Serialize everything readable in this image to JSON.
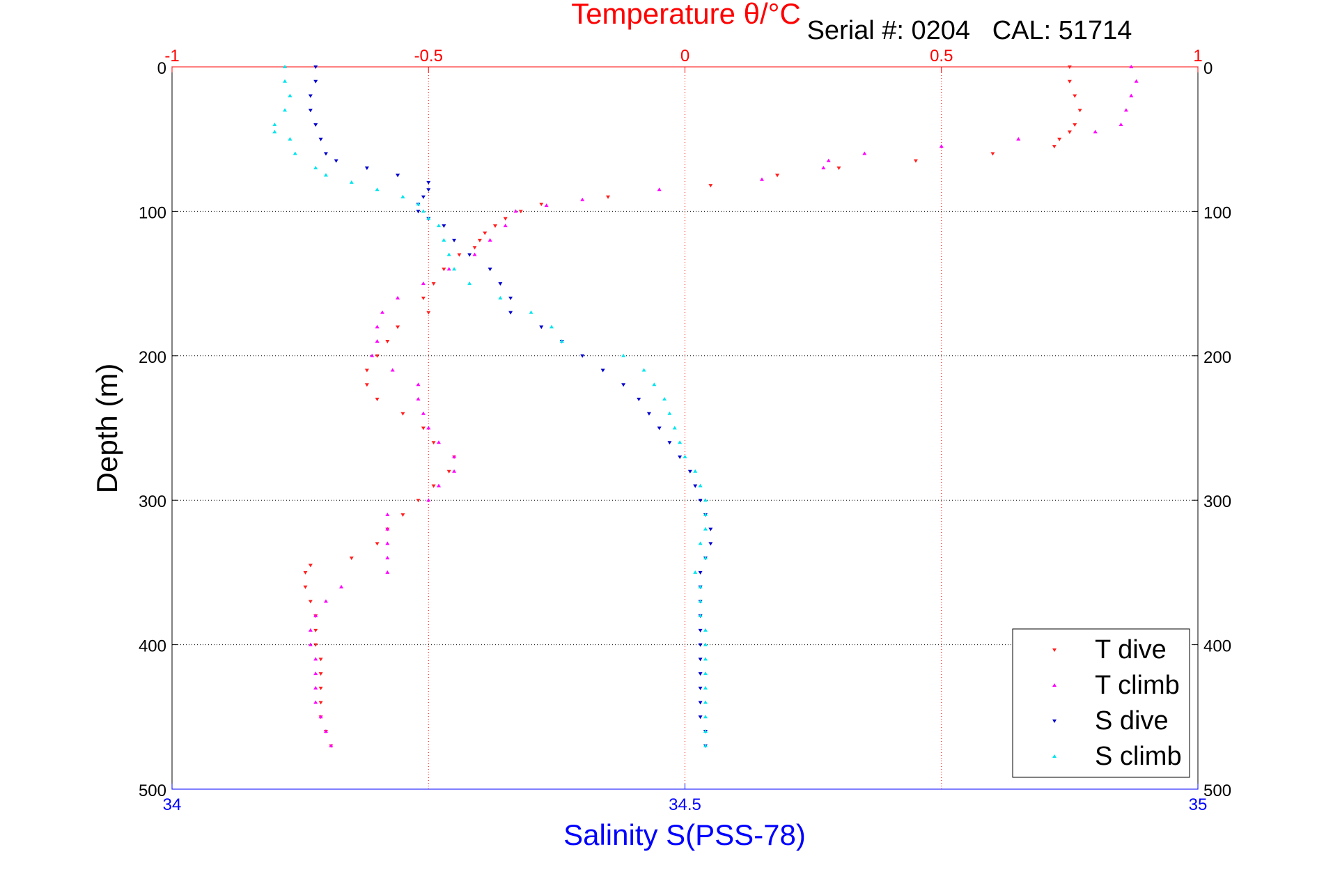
{
  "chart_data": {
    "type": "scatter",
    "title": "Temperature θ/°C",
    "subtitle": "Serial #: 0204   CAL: 51714",
    "xlabel": "Salinity S(PSS-78)",
    "ylabel": "Depth (m)",
    "x_bottom": {
      "range": [
        34,
        35
      ],
      "ticks": [
        "34",
        "34.5",
        "35"
      ],
      "color": "#0000ff"
    },
    "x_top": {
      "range": [
        -1,
        1
      ],
      "ticks": [
        "-1",
        "-0.5",
        "0",
        "0.5",
        "1"
      ],
      "color": "#ff0000"
    },
    "y": {
      "range": [
        0,
        500
      ],
      "reversed": true,
      "ticks": [
        "0",
        "100",
        "200",
        "300",
        "400",
        "500"
      ]
    },
    "grid": true,
    "legend_position": "bottom-right",
    "colors": {
      "title": "#ff0000",
      "xlabel": "#0000ff",
      "t_dive": "#ff2020",
      "t_climb": "#ff00ff",
      "s_dive": "#0000cc",
      "s_climb": "#00e5ee"
    },
    "series": [
      {
        "name": "T dive",
        "axis": "temperature",
        "color": "#ff2020",
        "points": [
          [
            0.75,
            0
          ],
          [
            0.75,
            10
          ],
          [
            0.76,
            20
          ],
          [
            0.77,
            30
          ],
          [
            0.76,
            40
          ],
          [
            0.75,
            45
          ],
          [
            0.73,
            50
          ],
          [
            0.72,
            55
          ],
          [
            0.6,
            60
          ],
          [
            0.45,
            65
          ],
          [
            0.3,
            70
          ],
          [
            0.18,
            75
          ],
          [
            0.05,
            82
          ],
          [
            -0.15,
            90
          ],
          [
            -0.28,
            95
          ],
          [
            -0.32,
            100
          ],
          [
            -0.35,
            105
          ],
          [
            -0.37,
            110
          ],
          [
            -0.39,
            115
          ],
          [
            -0.4,
            120
          ],
          [
            -0.41,
            125
          ],
          [
            -0.44,
            130
          ],
          [
            -0.47,
            140
          ],
          [
            -0.49,
            150
          ],
          [
            -0.51,
            160
          ],
          [
            -0.5,
            170
          ],
          [
            -0.56,
            180
          ],
          [
            -0.58,
            190
          ],
          [
            -0.6,
            200
          ],
          [
            -0.62,
            210
          ],
          [
            -0.62,
            220
          ],
          [
            -0.6,
            230
          ],
          [
            -0.55,
            240
          ],
          [
            -0.51,
            250
          ],
          [
            -0.49,
            260
          ],
          [
            -0.45,
            270
          ],
          [
            -0.46,
            280
          ],
          [
            -0.49,
            290
          ],
          [
            -0.52,
            300
          ],
          [
            -0.55,
            310
          ],
          [
            -0.58,
            320
          ],
          [
            -0.6,
            330
          ],
          [
            -0.65,
            340
          ],
          [
            -0.73,
            345
          ],
          [
            -0.74,
            350
          ],
          [
            -0.74,
            360
          ],
          [
            -0.73,
            370
          ],
          [
            -0.72,
            380
          ],
          [
            -0.72,
            390
          ],
          [
            -0.72,
            400
          ],
          [
            -0.71,
            410
          ],
          [
            -0.71,
            420
          ],
          [
            -0.71,
            430
          ],
          [
            -0.71,
            440
          ],
          [
            -0.71,
            450
          ],
          [
            -0.7,
            460
          ],
          [
            -0.69,
            470
          ]
        ]
      },
      {
        "name": "T climb",
        "axis": "temperature",
        "color": "#ff00ff",
        "points": [
          [
            0.87,
            0
          ],
          [
            0.88,
            10
          ],
          [
            0.87,
            20
          ],
          [
            0.86,
            30
          ],
          [
            0.85,
            40
          ],
          [
            0.8,
            45
          ],
          [
            0.65,
            50
          ],
          [
            0.5,
            55
          ],
          [
            0.35,
            60
          ],
          [
            0.28,
            65
          ],
          [
            0.27,
            70
          ],
          [
            0.15,
            78
          ],
          [
            -0.05,
            85
          ],
          [
            -0.2,
            92
          ],
          [
            -0.27,
            96
          ],
          [
            -0.33,
            100
          ],
          [
            -0.35,
            110
          ],
          [
            -0.38,
            120
          ],
          [
            -0.41,
            130
          ],
          [
            -0.46,
            140
          ],
          [
            -0.51,
            150
          ],
          [
            -0.56,
            160
          ],
          [
            -0.59,
            170
          ],
          [
            -0.6,
            180
          ],
          [
            -0.6,
            190
          ],
          [
            -0.61,
            200
          ],
          [
            -0.57,
            210
          ],
          [
            -0.52,
            220
          ],
          [
            -0.52,
            230
          ],
          [
            -0.51,
            240
          ],
          [
            -0.5,
            250
          ],
          [
            -0.48,
            260
          ],
          [
            -0.45,
            270
          ],
          [
            -0.45,
            280
          ],
          [
            -0.48,
            290
          ],
          [
            -0.5,
            300
          ],
          [
            -0.58,
            310
          ],
          [
            -0.58,
            320
          ],
          [
            -0.58,
            330
          ],
          [
            -0.58,
            340
          ],
          [
            -0.58,
            350
          ],
          [
            -0.67,
            360
          ],
          [
            -0.7,
            370
          ],
          [
            -0.72,
            380
          ],
          [
            -0.73,
            390
          ],
          [
            -0.73,
            400
          ],
          [
            -0.72,
            410
          ],
          [
            -0.72,
            420
          ],
          [
            -0.72,
            430
          ],
          [
            -0.72,
            440
          ],
          [
            -0.71,
            450
          ],
          [
            -0.7,
            460
          ],
          [
            -0.69,
            470
          ]
        ]
      },
      {
        "name": "S dive",
        "axis": "salinity",
        "color": "#0000cc",
        "points": [
          [
            34.14,
            0
          ],
          [
            34.14,
            10
          ],
          [
            34.135,
            20
          ],
          [
            34.135,
            30
          ],
          [
            34.14,
            40
          ],
          [
            34.145,
            50
          ],
          [
            34.15,
            60
          ],
          [
            34.16,
            65
          ],
          [
            34.19,
            70
          ],
          [
            34.22,
            75
          ],
          [
            34.25,
            80
          ],
          [
            34.25,
            85
          ],
          [
            34.245,
            90
          ],
          [
            34.24,
            95
          ],
          [
            34.24,
            100
          ],
          [
            34.25,
            105
          ],
          [
            34.265,
            110
          ],
          [
            34.275,
            120
          ],
          [
            34.29,
            130
          ],
          [
            34.31,
            140
          ],
          [
            34.32,
            150
          ],
          [
            34.33,
            160
          ],
          [
            34.33,
            170
          ],
          [
            34.36,
            180
          ],
          [
            34.38,
            190
          ],
          [
            34.4,
            200
          ],
          [
            34.42,
            210
          ],
          [
            34.44,
            220
          ],
          [
            34.455,
            230
          ],
          [
            34.465,
            240
          ],
          [
            34.475,
            250
          ],
          [
            34.485,
            260
          ],
          [
            34.495,
            270
          ],
          [
            34.505,
            280
          ],
          [
            34.51,
            290
          ],
          [
            34.515,
            300
          ],
          [
            34.52,
            310
          ],
          [
            34.525,
            320
          ],
          [
            34.525,
            330
          ],
          [
            34.52,
            340
          ],
          [
            34.515,
            350
          ],
          [
            34.515,
            360
          ],
          [
            34.515,
            370
          ],
          [
            34.515,
            380
          ],
          [
            34.515,
            390
          ],
          [
            34.515,
            400
          ],
          [
            34.515,
            410
          ],
          [
            34.515,
            420
          ],
          [
            34.515,
            430
          ],
          [
            34.515,
            440
          ],
          [
            34.515,
            450
          ],
          [
            34.52,
            460
          ],
          [
            34.52,
            470
          ]
        ]
      },
      {
        "name": "S climb",
        "axis": "salinity",
        "color": "#00e5ee",
        "points": [
          [
            34.11,
            0
          ],
          [
            34.11,
            10
          ],
          [
            34.115,
            20
          ],
          [
            34.11,
            30
          ],
          [
            34.1,
            40
          ],
          [
            34.1,
            45
          ],
          [
            34.115,
            50
          ],
          [
            34.12,
            60
          ],
          [
            34.14,
            70
          ],
          [
            34.15,
            75
          ],
          [
            34.175,
            80
          ],
          [
            34.2,
            85
          ],
          [
            34.225,
            90
          ],
          [
            34.24,
            95
          ],
          [
            34.245,
            100
          ],
          [
            34.25,
            105
          ],
          [
            34.26,
            110
          ],
          [
            34.265,
            120
          ],
          [
            34.27,
            130
          ],
          [
            34.275,
            140
          ],
          [
            34.29,
            150
          ],
          [
            34.32,
            160
          ],
          [
            34.35,
            170
          ],
          [
            34.37,
            180
          ],
          [
            34.38,
            190
          ],
          [
            34.44,
            200
          ],
          [
            34.46,
            210
          ],
          [
            34.47,
            220
          ],
          [
            34.48,
            230
          ],
          [
            34.485,
            240
          ],
          [
            34.49,
            250
          ],
          [
            34.495,
            260
          ],
          [
            34.5,
            270
          ],
          [
            34.51,
            280
          ],
          [
            34.515,
            290
          ],
          [
            34.52,
            300
          ],
          [
            34.52,
            310
          ],
          [
            34.52,
            320
          ],
          [
            34.515,
            330
          ],
          [
            34.52,
            340
          ],
          [
            34.51,
            350
          ],
          [
            34.515,
            360
          ],
          [
            34.515,
            370
          ],
          [
            34.515,
            380
          ],
          [
            34.52,
            390
          ],
          [
            34.52,
            400
          ],
          [
            34.52,
            410
          ],
          [
            34.52,
            420
          ],
          [
            34.52,
            430
          ],
          [
            34.52,
            440
          ],
          [
            34.52,
            450
          ],
          [
            34.52,
            460
          ],
          [
            34.52,
            470
          ]
        ]
      }
    ]
  }
}
